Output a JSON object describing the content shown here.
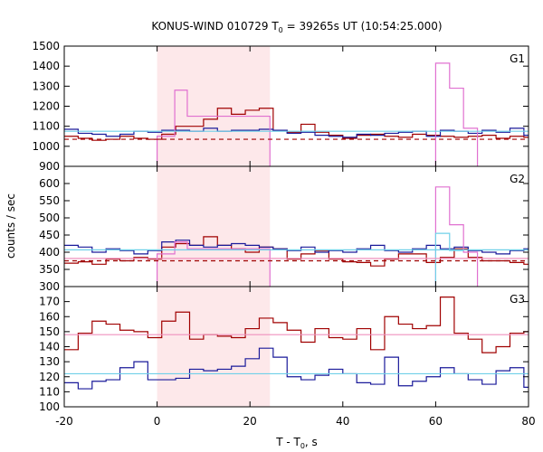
{
  "chart_data": {
    "type": "line",
    "title_main": "KONUS-WIND 010729 T",
    "title_sub": "0",
    "title_rest": " = 39265s UT (10:54:25.000)",
    "xlabel_main": "T - T",
    "xlabel_sub": "0",
    "xlabel_rest": ", s",
    "ylabel": "counts / sec",
    "xlim": [
      -20,
      80
    ],
    "xticks": [
      -20,
      0,
      20,
      40,
      60,
      80
    ],
    "highlight_interval": [
      0,
      24.3
    ],
    "grid": false,
    "colors": {
      "dark_red": "#a00000",
      "dark_blue": "#1a1a9a",
      "pink": "#e070d0",
      "light_pink": "#ef90bd",
      "cyan": "#6fd0e8",
      "highlight": "#fde8ea"
    },
    "panels": [
      {
        "label": "G1",
        "ylim": [
          900,
          1500
        ],
        "yticks": [
          900,
          1000,
          1100,
          1200,
          1300,
          1400,
          1500
        ],
        "series": [
          {
            "style": "step",
            "color": "#a00000",
            "edges": [
              -20,
              -17,
              -14,
              -11,
              -8,
              -5,
              -2,
              1,
              4,
              7,
              10,
              13,
              16,
              19,
              22,
              25,
              28,
              31,
              34,
              37,
              40,
              43,
              46,
              49,
              52,
              55,
              58,
              61,
              64,
              67,
              70,
              73,
              76,
              79,
              80
            ],
            "values": [
              1050,
              1040,
              1030,
              1035,
              1050,
              1040,
              1035,
              1060,
              1100,
              1100,
              1135,
              1190,
              1160,
              1180,
              1190,
              1080,
              1070,
              1110,
              1070,
              1055,
              1040,
              1055,
              1060,
              1050,
              1045,
              1060,
              1055,
              1050,
              1045,
              1050,
              1055,
              1040,
              1050,
              1045
            ]
          },
          {
            "style": "step",
            "color": "#1a1a9a",
            "edges": [
              -20,
              -17,
              -14,
              -11,
              -8,
              -5,
              -2,
              1,
              4,
              7,
              10,
              13,
              16,
              19,
              22,
              25,
              28,
              31,
              34,
              37,
              40,
              43,
              46,
              49,
              52,
              55,
              58,
              61,
              64,
              67,
              70,
              73,
              76,
              79,
              80
            ],
            "values": [
              1085,
              1065,
              1060,
              1050,
              1060,
              1075,
              1070,
              1080,
              1080,
              1075,
              1090,
              1075,
              1080,
              1080,
              1085,
              1080,
              1065,
              1070,
              1055,
              1050,
              1045,
              1060,
              1055,
              1065,
              1070,
              1075,
              1050,
              1080,
              1075,
              1065,
              1080,
              1070,
              1090,
              1055
            ]
          },
          {
            "style": "step",
            "color": "#e070d0",
            "edges": [
              0,
              3.8,
              6.5,
              24.3,
              60,
              63,
              66,
              69
            ],
            "values": [
              1050,
              1280,
              1150,
              null,
              1415,
              1290,
              1090
            ]
          },
          {
            "style": "hline",
            "color": "#6fd0e8",
            "dash": false,
            "y": 1075,
            "from": -20,
            "to": 80
          },
          {
            "style": "hline",
            "color": "#a00000",
            "dash": true,
            "y": 1035,
            "from": -20,
            "to": 80
          }
        ]
      },
      {
        "label": "G2",
        "ylim": [
          300,
          650
        ],
        "yticks": [
          300,
          350,
          400,
          450,
          500,
          550,
          600
        ],
        "series": [
          {
            "style": "step",
            "color": "#a00000",
            "edges": [
              -20,
              -17,
              -14,
              -11,
              -8,
              -5,
              -2,
              1,
              4,
              7,
              10,
              13,
              16,
              19,
              22,
              25,
              28,
              31,
              34,
              37,
              40,
              43,
              46,
              49,
              52,
              55,
              58,
              61,
              64,
              67,
              70,
              73,
              76,
              79,
              80
            ],
            "values": [
              368,
              372,
              365,
              380,
              375,
              385,
              380,
              415,
              425,
              420,
              445,
              420,
              410,
              400,
              415,
              410,
              380,
              395,
              405,
              380,
              372,
              370,
              360,
              380,
              395,
              395,
              370,
              385,
              410,
              385,
              375,
              375,
              370,
              365
            ]
          },
          {
            "style": "step",
            "color": "#1a1a9a",
            "edges": [
              -20,
              -17,
              -14,
              -11,
              -8,
              -5,
              -2,
              1,
              4,
              7,
              10,
              13,
              16,
              19,
              22,
              25,
              28,
              31,
              34,
              37,
              40,
              43,
              46,
              49,
              52,
              55,
              58,
              61,
              64,
              67,
              70,
              73,
              76,
              79,
              80
            ],
            "values": [
              420,
              415,
              400,
              410,
              405,
              395,
              405,
              430,
              435,
              420,
              415,
              420,
              425,
              420,
              415,
              410,
              405,
              415,
              400,
              405,
              400,
              410,
              420,
              405,
              400,
              410,
              420,
              410,
              415,
              405,
              400,
              395,
              405,
              410
            ]
          },
          {
            "style": "step",
            "color": "#e070d0",
            "edges": [
              0,
              3.8,
              6.5,
              24.3,
              60,
              63,
              66,
              69
            ],
            "values": [
              395,
              430,
              410,
              null,
              590,
              480,
              400
            ]
          },
          {
            "style": "step",
            "color": "#6fd0e8",
            "edges": [
              60,
              63,
              66
            ],
            "values": [
              455,
              405
            ]
          },
          {
            "style": "hline",
            "color": "#6fd0e8",
            "dash": false,
            "y": 407,
            "from": -20,
            "to": 80
          },
          {
            "style": "hline",
            "color": "#ef90bd",
            "dash": false,
            "y": 382,
            "from": -20,
            "to": 80
          },
          {
            "style": "hline",
            "color": "#a00000",
            "dash": true,
            "y": 375,
            "from": -20,
            "to": 80
          }
        ]
      },
      {
        "label": "G3",
        "ylim": [
          100,
          180
        ],
        "yticks": [
          100,
          110,
          120,
          130,
          140,
          150,
          160,
          170
        ],
        "series": [
          {
            "style": "step",
            "color": "#a00000",
            "edges": [
              -20,
              -17,
              -14,
              -11,
              -8,
              -5,
              -2,
              1,
              4,
              7,
              10,
              13,
              16,
              19,
              22,
              25,
              28,
              31,
              34,
              37,
              40,
              43,
              46,
              49,
              52,
              55,
              58,
              61,
              64,
              67,
              70,
              73,
              76,
              79,
              80
            ],
            "values": [
              138,
              149,
              157,
              155,
              151,
              150,
              146,
              157,
              163,
              145,
              148,
              147,
              146,
              152,
              159,
              156,
              151,
              143,
              152,
              146,
              145,
              152,
              138,
              160,
              155,
              152,
              154,
              173,
              149,
              145,
              136,
              140,
              149,
              150
            ]
          },
          {
            "style": "step",
            "color": "#1a1a9a",
            "edges": [
              -20,
              -17,
              -14,
              -11,
              -8,
              -5,
              -2,
              1,
              4,
              7,
              10,
              13,
              16,
              19,
              22,
              25,
              28,
              31,
              34,
              37,
              40,
              43,
              46,
              49,
              52,
              55,
              58,
              61,
              64,
              67,
              70,
              73,
              76,
              79,
              80
            ],
            "values": [
              116,
              112,
              117,
              118,
              126,
              130,
              118,
              118,
              119,
              125,
              124,
              125,
              127,
              132,
              139,
              133,
              120,
              118,
              121,
              125,
              122,
              116,
              115,
              133,
              114,
              117,
              120,
              126,
              122,
              118,
              115,
              124,
              126,
              113
            ]
          },
          {
            "style": "hline",
            "color": "#ef90bd",
            "dash": false,
            "y": 148,
            "from": -20,
            "to": 80
          },
          {
            "style": "hline",
            "color": "#6fd0e8",
            "dash": false,
            "y": 122,
            "from": -20,
            "to": 80
          }
        ]
      }
    ]
  }
}
